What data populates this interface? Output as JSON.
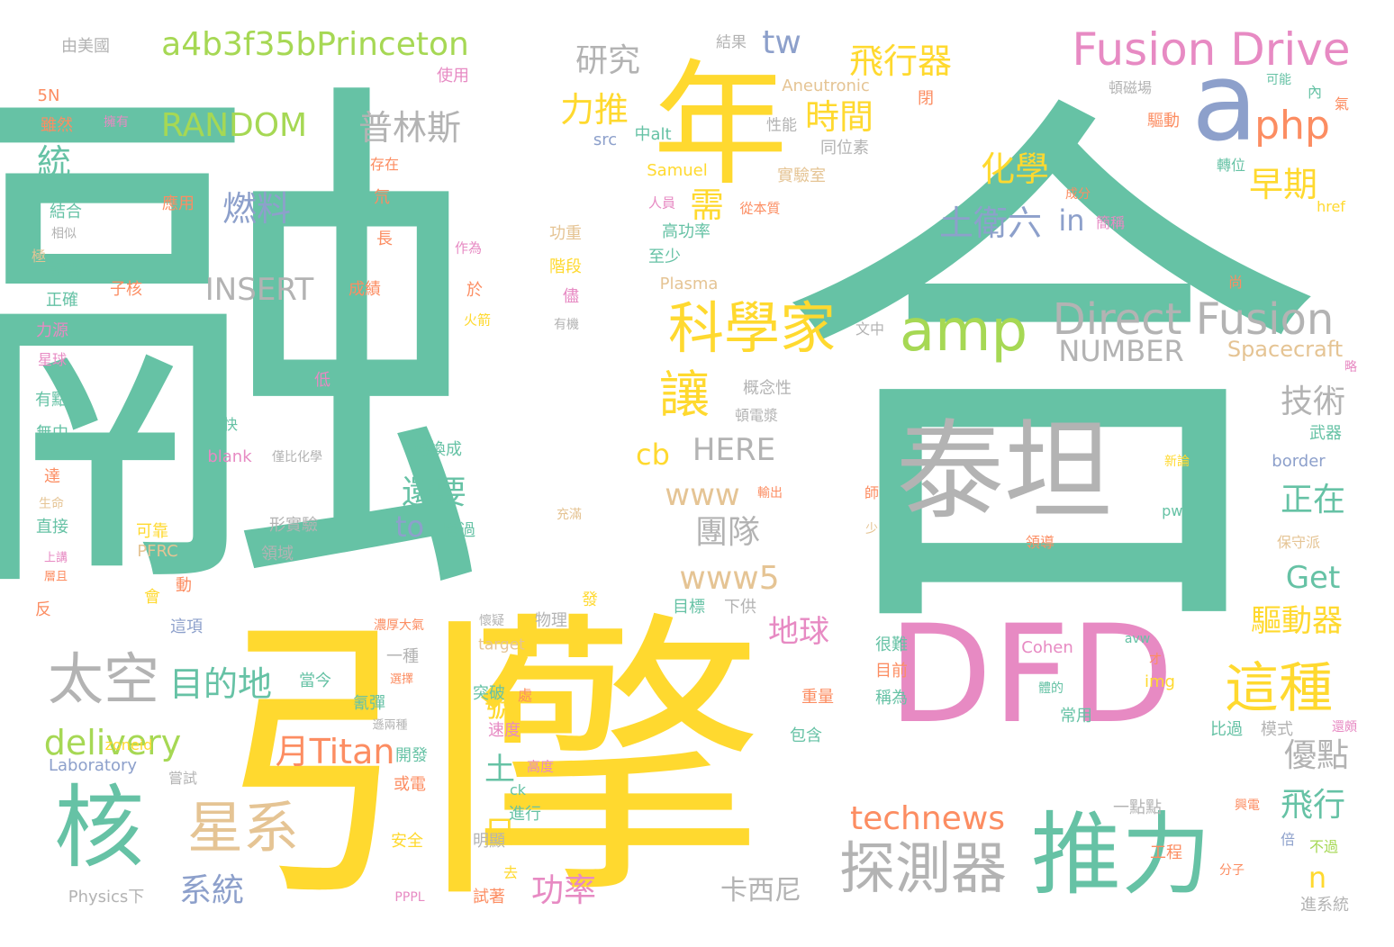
{
  "palette": {
    "green": "#66c2a5",
    "orange": "#fc8d62",
    "blue": "#8da0cb",
    "pink": "#e78ac3",
    "lime": "#a6d854",
    "yellow": "#ffd92f",
    "tan": "#e5c494",
    "gray": "#b3b3b3"
  },
  "words": [
    {
      "text": "融",
      "color": "green"
    },
    {
      "text": "合",
      "color": "green"
    },
    {
      "text": "引",
      "color": "yellow"
    },
    {
      "text": "擎",
      "color": "yellow"
    },
    {
      "text": "DFD",
      "color": "pink"
    },
    {
      "text": "泰坦",
      "color": "gray"
    },
    {
      "text": "年",
      "color": "yellow"
    },
    {
      "text": "a",
      "color": "blue"
    },
    {
      "text": "推力",
      "color": "green"
    },
    {
      "text": "核",
      "color": "green"
    },
    {
      "text": "科學家",
      "color": "yellow"
    },
    {
      "text": "amp",
      "color": "lime"
    },
    {
      "text": "Direct Fusion",
      "color": "gray"
    },
    {
      "text": "Fusion Drive",
      "color": "pink"
    },
    {
      "text": "太空",
      "color": "gray"
    },
    {
      "text": "星系",
      "color": "tan"
    },
    {
      "text": "探測器",
      "color": "gray"
    },
    {
      "text": "這種",
      "color": "yellow"
    },
    {
      "text": "a4b3f35bPrinceton",
      "color": "lime"
    },
    {
      "text": "php",
      "color": "orange"
    },
    {
      "text": "讓",
      "color": "yellow"
    },
    {
      "text": "RANDOM",
      "color": "lime"
    },
    {
      "text": "普林斯",
      "color": "gray"
    },
    {
      "text": "飛行器",
      "color": "yellow"
    },
    {
      "text": "研究",
      "color": "gray"
    },
    {
      "text": "tw",
      "color": "blue"
    },
    {
      "text": "力推",
      "color": "yellow"
    },
    {
      "text": "時間",
      "color": "yellow"
    },
    {
      "text": "化學",
      "color": "yellow"
    },
    {
      "text": "燃料",
      "color": "blue"
    },
    {
      "text": "統",
      "color": "green"
    },
    {
      "text": "需",
      "color": "yellow"
    },
    {
      "text": "土衛六",
      "color": "blue"
    },
    {
      "text": "in",
      "color": "blue"
    },
    {
      "text": "早期",
      "color": "yellow"
    },
    {
      "text": "INSERT",
      "color": "gray"
    },
    {
      "text": "NUMBER",
      "color": "gray"
    },
    {
      "text": "Spacecraft",
      "color": "tan"
    },
    {
      "text": "技術",
      "color": "gray"
    },
    {
      "text": "HERE",
      "color": "gray"
    },
    {
      "text": "cb",
      "color": "yellow"
    },
    {
      "text": "www",
      "color": "tan"
    },
    {
      "text": "還要",
      "color": "green"
    },
    {
      "text": "團隊",
      "color": "gray"
    },
    {
      "text": "正在",
      "color": "green"
    },
    {
      "text": "to",
      "color": "blue"
    },
    {
      "text": "www5",
      "color": "tan"
    },
    {
      "text": "Get",
      "color": "green"
    },
    {
      "text": "地球",
      "color": "pink"
    },
    {
      "text": "驅動器",
      "color": "yellow"
    },
    {
      "text": "目的地",
      "color": "green"
    },
    {
      "text": "delivery",
      "color": "lime"
    },
    {
      "text": "月Titan",
      "color": "orange"
    },
    {
      "text": "號",
      "color": "yellow"
    },
    {
      "text": "土",
      "color": "green"
    },
    {
      "text": "優點",
      "color": "gray"
    },
    {
      "text": "飛行",
      "color": "green"
    },
    {
      "text": "technews",
      "color": "orange"
    },
    {
      "text": "只",
      "color": "yellow"
    },
    {
      "text": "n",
      "color": "yellow"
    },
    {
      "text": "系統",
      "color": "blue"
    },
    {
      "text": "功率",
      "color": "pink"
    },
    {
      "text": "卡西尼",
      "color": "gray"
    },
    {
      "text": "由美國",
      "color": "gray"
    },
    {
      "text": "結果",
      "color": "gray"
    },
    {
      "text": "使用",
      "color": "pink"
    },
    {
      "text": "Aneutronic",
      "color": "tan"
    },
    {
      "text": "性能",
      "color": "gray"
    },
    {
      "text": "同位素",
      "color": "gray"
    },
    {
      "text": "src",
      "color": "blue"
    },
    {
      "text": "中alt",
      "color": "green"
    },
    {
      "text": "Samuel",
      "color": "yellow"
    },
    {
      "text": "實驗室",
      "color": "tan"
    },
    {
      "text": "應用",
      "color": "orange"
    },
    {
      "text": "人員",
      "color": "pink"
    },
    {
      "text": "從本質",
      "color": "orange"
    },
    {
      "text": "高功率",
      "color": "green"
    },
    {
      "text": "功重",
      "color": "tan"
    },
    {
      "text": "階段",
      "color": "yellow"
    },
    {
      "text": "至少",
      "color": "green"
    },
    {
      "text": "Plasma",
      "color": "tan"
    },
    {
      "text": "文中",
      "color": "gray"
    },
    {
      "text": "概念性",
      "color": "gray"
    },
    {
      "text": "頓電漿",
      "color": "gray"
    },
    {
      "text": "轉換成",
      "color": "green"
    },
    {
      "text": "blank",
      "color": "pink"
    },
    {
      "text": "僅比化學",
      "color": "gray"
    },
    {
      "text": "形實驗",
      "color": "gray"
    },
    {
      "text": "領域",
      "color": "gray"
    },
    {
      "text": "勝過",
      "color": "green"
    },
    {
      "text": "頓磁場",
      "color": "gray"
    },
    {
      "text": "驅動",
      "color": "orange"
    },
    {
      "text": "轉位",
      "color": "green"
    },
    {
      "text": "成分",
      "color": "orange"
    },
    {
      "text": "簡稱",
      "color": "pink"
    },
    {
      "text": "href",
      "color": "yellow"
    },
    {
      "text": "可能",
      "color": "green"
    },
    {
      "text": "內",
      "color": "green"
    },
    {
      "text": "氣",
      "color": "orange"
    },
    {
      "text": "閉",
      "color": "orange"
    },
    {
      "text": "尚",
      "color": "orange"
    },
    {
      "text": "略",
      "color": "pink"
    },
    {
      "text": "武器",
      "color": "green"
    },
    {
      "text": "border",
      "color": "blue"
    },
    {
      "text": "新論",
      "color": "yellow"
    },
    {
      "text": "pwr",
      "color": "green"
    },
    {
      "text": "保守派",
      "color": "tan"
    },
    {
      "text": "領導",
      "color": "orange"
    },
    {
      "text": "師",
      "color": "orange"
    },
    {
      "text": "少",
      "color": "tan"
    },
    {
      "text": "充滿",
      "color": "tan"
    },
    {
      "text": "輸出",
      "color": "orange"
    },
    {
      "text": "很難",
      "color": "green"
    },
    {
      "text": "目前",
      "color": "orange"
    },
    {
      "text": "稱為",
      "color": "green"
    },
    {
      "text": "Cohen",
      "color": "pink"
    },
    {
      "text": "avw",
      "color": "green"
    },
    {
      "text": "img",
      "color": "yellow"
    },
    {
      "text": "才",
      "color": "orange"
    },
    {
      "text": "體的",
      "color": "green"
    },
    {
      "text": "常用",
      "color": "green"
    },
    {
      "text": "比過",
      "color": "green"
    },
    {
      "text": "模式",
      "color": "gray"
    },
    {
      "text": "還頗",
      "color": "pink"
    },
    {
      "text": "重量",
      "color": "orange"
    },
    {
      "text": "包含",
      "color": "green"
    },
    {
      "text": "突破",
      "color": "green"
    },
    {
      "text": "處",
      "color": "orange"
    },
    {
      "text": "速度",
      "color": "pink"
    },
    {
      "text": "高度",
      "color": "pink"
    },
    {
      "text": "開發",
      "color": "green"
    },
    {
      "text": "或電",
      "color": "orange"
    },
    {
      "text": "ck",
      "color": "green"
    },
    {
      "text": "進行",
      "color": "green"
    },
    {
      "text": "明顯",
      "color": "gray"
    },
    {
      "text": "安全",
      "color": "yellow"
    },
    {
      "text": "去",
      "color": "yellow"
    },
    {
      "text": "試著",
      "color": "orange"
    },
    {
      "text": "PPPL",
      "color": "pink"
    },
    {
      "text": "Physics下",
      "color": "gray"
    },
    {
      "text": "工程",
      "color": "orange"
    },
    {
      "text": "一點點",
      "color": "gray"
    },
    {
      "text": "興電",
      "color": "orange"
    },
    {
      "text": "倍",
      "color": "blue"
    },
    {
      "text": "不過",
      "color": "lime"
    },
    {
      "text": "分子",
      "color": "orange"
    },
    {
      "text": "進系統",
      "color": "gray"
    },
    {
      "text": "氰彈",
      "color": "green"
    },
    {
      "text": "遜兩種",
      "color": "gray"
    },
    {
      "text": "當今",
      "color": "green"
    },
    {
      "text": "選擇",
      "color": "orange"
    },
    {
      "text": "一種",
      "color": "gray"
    },
    {
      "text": "target",
      "color": "tan"
    },
    {
      "text": "濃厚大氣",
      "color": "orange"
    },
    {
      "text": "懷疑",
      "color": "gray"
    },
    {
      "text": "物理",
      "color": "gray"
    },
    {
      "text": "發",
      "color": "yellow"
    },
    {
      "text": "目標",
      "color": "green"
    },
    {
      "text": "下供",
      "color": "gray"
    },
    {
      "text": "這項",
      "color": "blue"
    },
    {
      "text": "zoneid",
      "color": "yellow"
    },
    {
      "text": "Laboratory",
      "color": "blue"
    },
    {
      "text": "嘗試",
      "color": "gray"
    },
    {
      "text": "可靠",
      "color": "yellow"
    },
    {
      "text": "PFRC",
      "color": "tan"
    },
    {
      "text": "動",
      "color": "orange"
    },
    {
      "text": "會",
      "color": "yellow"
    },
    {
      "text": "快",
      "color": "green"
    },
    {
      "text": "低",
      "color": "pink"
    },
    {
      "text": "於",
      "color": "orange"
    },
    {
      "text": "作為",
      "color": "pink"
    },
    {
      "text": "火箭",
      "color": "yellow"
    },
    {
      "text": "儘",
      "color": "pink"
    },
    {
      "text": "有機",
      "color": "gray"
    },
    {
      "text": "存在",
      "color": "orange"
    },
    {
      "text": "氘",
      "color": "orange"
    },
    {
      "text": "長",
      "color": "orange"
    },
    {
      "text": "成績",
      "color": "orange"
    },
    {
      "text": "子核",
      "color": "orange"
    },
    {
      "text": "擁有",
      "color": "pink"
    },
    {
      "text": "5N",
      "color": "orange"
    },
    {
      "text": "雖然",
      "color": "orange"
    },
    {
      "text": "結合",
      "color": "green"
    },
    {
      "text": "相似",
      "color": "gray"
    },
    {
      "text": "極",
      "color": "tan"
    },
    {
      "text": "認為",
      "color": "green"
    },
    {
      "text": "正確",
      "color": "green"
    },
    {
      "text": "力源",
      "color": "pink"
    },
    {
      "text": "星球",
      "color": "pink"
    },
    {
      "text": "有點",
      "color": "green"
    },
    {
      "text": "無中",
      "color": "green"
    },
    {
      "text": "達",
      "color": "orange"
    },
    {
      "text": "生命",
      "color": "tan"
    },
    {
      "text": "直接",
      "color": "green"
    },
    {
      "text": "上講",
      "color": "pink"
    },
    {
      "text": "層且",
      "color": "orange"
    },
    {
      "text": "反",
      "color": "orange"
    }
  ]
}
